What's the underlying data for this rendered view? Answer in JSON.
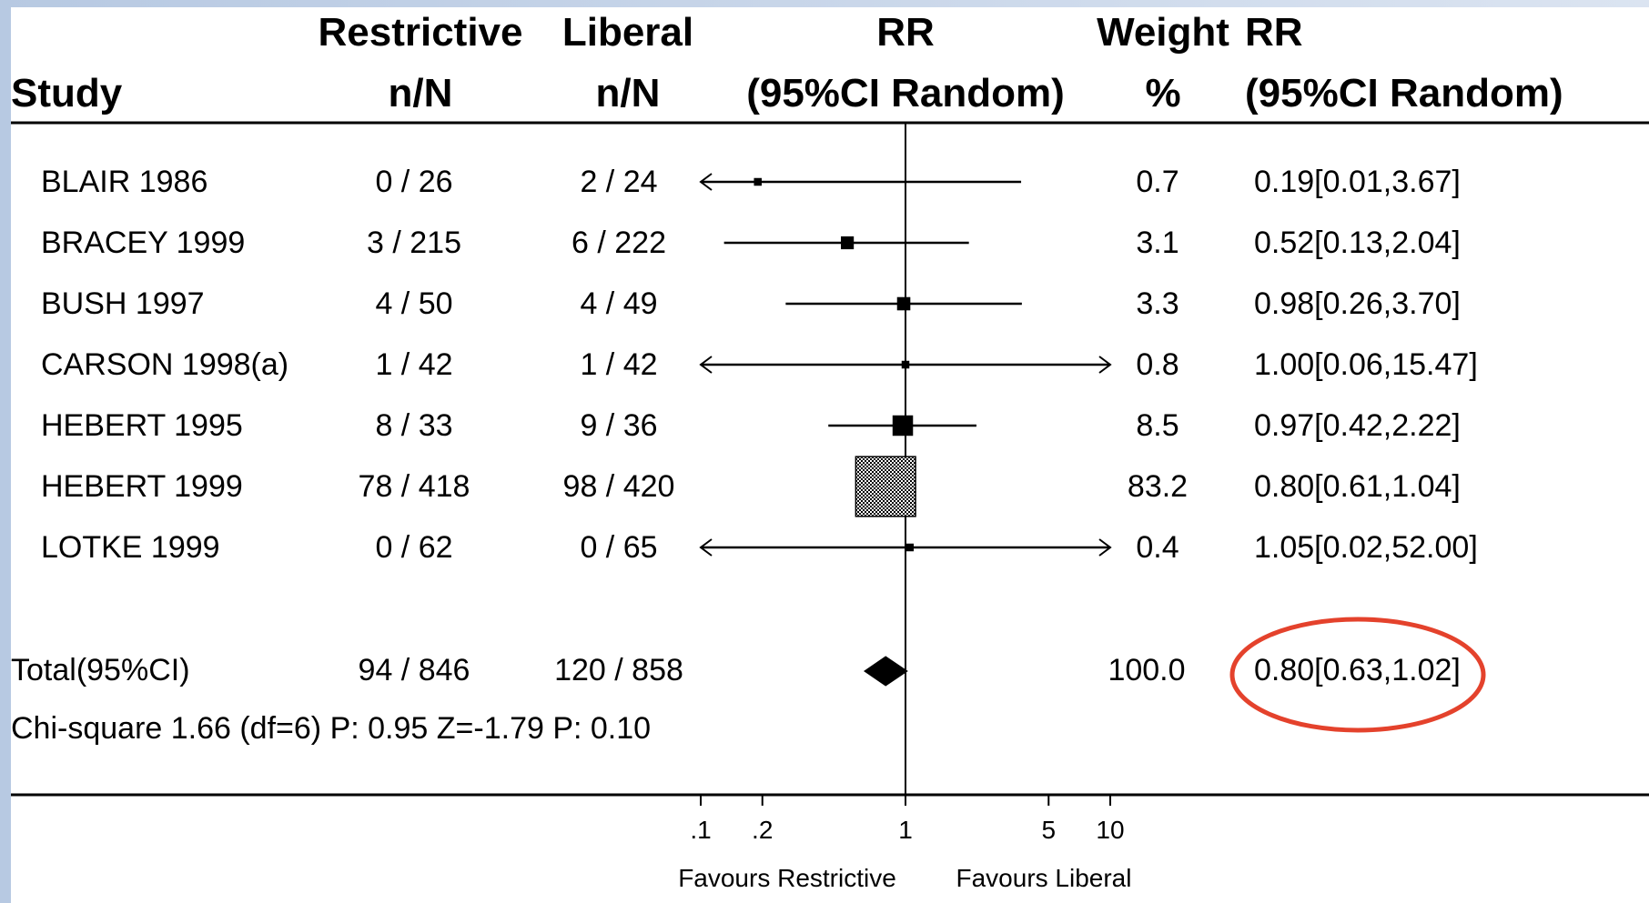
{
  "header": {
    "study": "Study",
    "restrictive": "Restrictive",
    "restrictive_sub": "n/N",
    "liberal": "Liberal",
    "liberal_sub": "n/N",
    "rr": "RR",
    "rr_sub": "(95%CI Random)",
    "weight": "Weight",
    "weight_sub": "%",
    "rr2": "RR",
    "rr2_sub": "(95%CI Random)"
  },
  "rows": [
    {
      "study": "BLAIR 1986",
      "restrictive": "0 / 26",
      "liberal": "2 / 24",
      "weight": "0.7",
      "rr_text": "0.19[0.01,3.67]"
    },
    {
      "study": "BRACEY 1999",
      "restrictive": "3 / 215",
      "liberal": "6 / 222",
      "weight": "3.1",
      "rr_text": "0.52[0.13,2.04]"
    },
    {
      "study": "BUSH 1997",
      "restrictive": "4 / 50",
      "liberal": "4 / 49",
      "weight": "3.3",
      "rr_text": "0.98[0.26,3.70]"
    },
    {
      "study": "CARSON 1998(a)",
      "restrictive": "1 / 42",
      "liberal": "1 / 42",
      "weight": "0.8",
      "rr_text": "1.00[0.06,15.47]"
    },
    {
      "study": "HEBERT 1995",
      "restrictive": "8 / 33",
      "liberal": "9 / 36",
      "weight": "8.5",
      "rr_text": "0.97[0.42,2.22]"
    },
    {
      "study": "HEBERT 1999",
      "restrictive": "78 / 418",
      "liberal": "98 / 420",
      "weight": "83.2",
      "rr_text": "0.80[0.61,1.04]"
    },
    {
      "study": "LOTKE 1999",
      "restrictive": "0 / 62",
      "liberal": "0 / 65",
      "weight": "0.4",
      "rr_text": "1.05[0.02,52.00]"
    }
  ],
  "total": {
    "study": "Total(95%CI)",
    "restrictive": "94 / 846",
    "liberal": "120 / 858",
    "weight": "100.0",
    "rr_text": "0.80[0.63,1.02]"
  },
  "heterogeneity": "Chi-square 1.66 (df=6) P: 0.95  Z=-1.79 P: 0.10",
  "axis_footer": {
    "left": "Favours Restrictive",
    "right": "Favours Liberal"
  },
  "colors": {
    "highlight": "#e4422c",
    "ink": "#000000"
  },
  "chart_data": {
    "type": "forest",
    "x_scale": "log",
    "xlim": [
      0.1,
      10
    ],
    "x_ticks": [
      0.1,
      0.2,
      1,
      5,
      10
    ],
    "x_tick_labels": [
      ".1",
      ".2",
      "1",
      "5",
      "10"
    ],
    "null_line": 1,
    "studies": [
      {
        "name": "BLAIR 1986",
        "rr": 0.19,
        "lo": 0.01,
        "hi": 3.67,
        "weight": 0.7
      },
      {
        "name": "BRACEY 1999",
        "rr": 0.52,
        "lo": 0.13,
        "hi": 2.04,
        "weight": 3.1
      },
      {
        "name": "BUSH 1997",
        "rr": 0.98,
        "lo": 0.26,
        "hi": 3.7,
        "weight": 3.3
      },
      {
        "name": "CARSON 1998(a)",
        "rr": 1.0,
        "lo": 0.06,
        "hi": 15.47,
        "weight": 0.8
      },
      {
        "name": "HEBERT 1995",
        "rr": 0.97,
        "lo": 0.42,
        "hi": 2.22,
        "weight": 8.5
      },
      {
        "name": "HEBERT 1999",
        "rr": 0.8,
        "lo": 0.61,
        "hi": 1.04,
        "weight": 83.2
      },
      {
        "name": "LOTKE 1999",
        "rr": 1.05,
        "lo": 0.02,
        "hi": 52.0,
        "weight": 0.4
      }
    ],
    "pooled": {
      "rr": 0.8,
      "lo": 0.63,
      "hi": 1.02
    }
  }
}
